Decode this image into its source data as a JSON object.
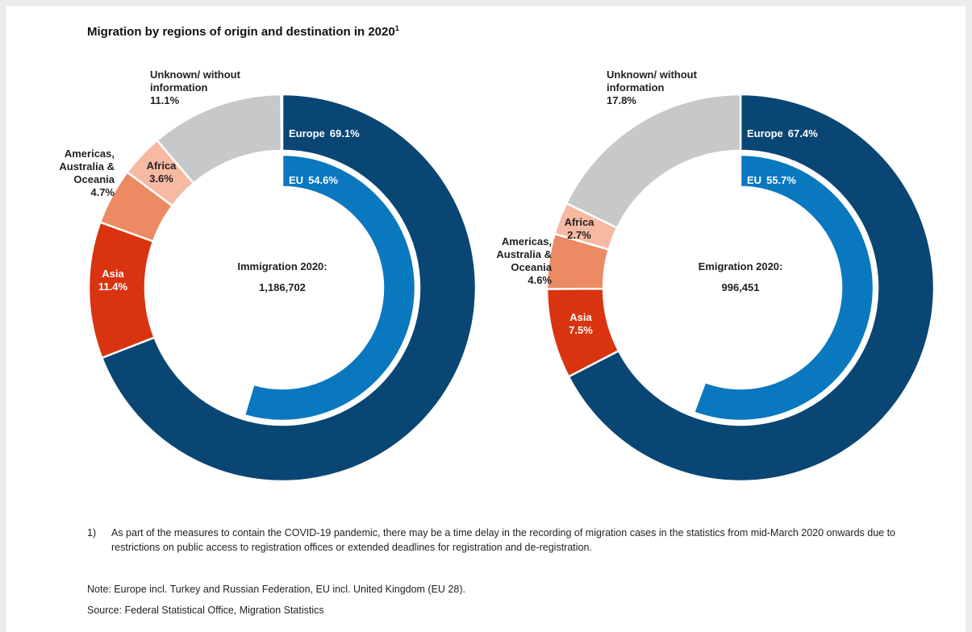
{
  "title": "Migration by regions of origin and destination in 2020",
  "title_note": "1",
  "chart_data": [
    {
      "type": "donut",
      "center_label": "Immigration 2020:",
      "total": 1186702,
      "total_label": "1,186,702",
      "categories": [
        "Europe",
        "Asia",
        "Americas, Australia & Oceania",
        "Africa",
        "Unknown/ without information"
      ],
      "values": [
        69.1,
        11.4,
        4.7,
        3.6,
        11.1
      ],
      "value_labels": [
        "69.1%",
        "11.4%",
        "4.7%",
        "3.6%",
        "11.1%"
      ],
      "colors": [
        "#0a4673",
        "#d9340f",
        "#ec8a63",
        "#f6b9a2",
        "#c7c8c9"
      ],
      "inner": {
        "categories": [
          "EU"
        ],
        "values": [
          54.6
        ],
        "value_labels": [
          "54.6%"
        ],
        "colors": [
          "#0a78bf"
        ]
      }
    },
    {
      "type": "donut",
      "center_label": "Emigration 2020:",
      "total": 996451,
      "total_label": "996,451",
      "categories": [
        "Europe",
        "Asia",
        "Americas, Australia & Oceania",
        "Africa",
        "Unknown/ without information"
      ],
      "values": [
        67.4,
        7.5,
        4.6,
        2.7,
        17.8
      ],
      "value_labels": [
        "67.4%",
        "7.5%",
        "4.6%",
        "2.7%",
        "17.8%"
      ],
      "colors": [
        "#0a4673",
        "#d9340f",
        "#ec8a63",
        "#f6b9a2",
        "#c7c8c9"
      ],
      "inner": {
        "categories": [
          "EU"
        ],
        "values": [
          55.7
        ],
        "value_labels": [
          "55.7%"
        ],
        "colors": [
          "#0a78bf"
        ]
      }
    }
  ],
  "footnotes": [
    {
      "marker": "1)",
      "text": "As part of the measures to contain the COVID-19 pandemic, there may be a time delay in the recording of migration cases in the statistics from mid-March 2020 onwards due to restrictions on public access to registration offices or extended deadlines for registration and de-registration."
    }
  ],
  "note": "Note: Europe incl. Turkey and Russian Federation, EU incl. United Kingdom (EU 28).",
  "source": "Source: Federal Statistical Office, Migration Statistics"
}
